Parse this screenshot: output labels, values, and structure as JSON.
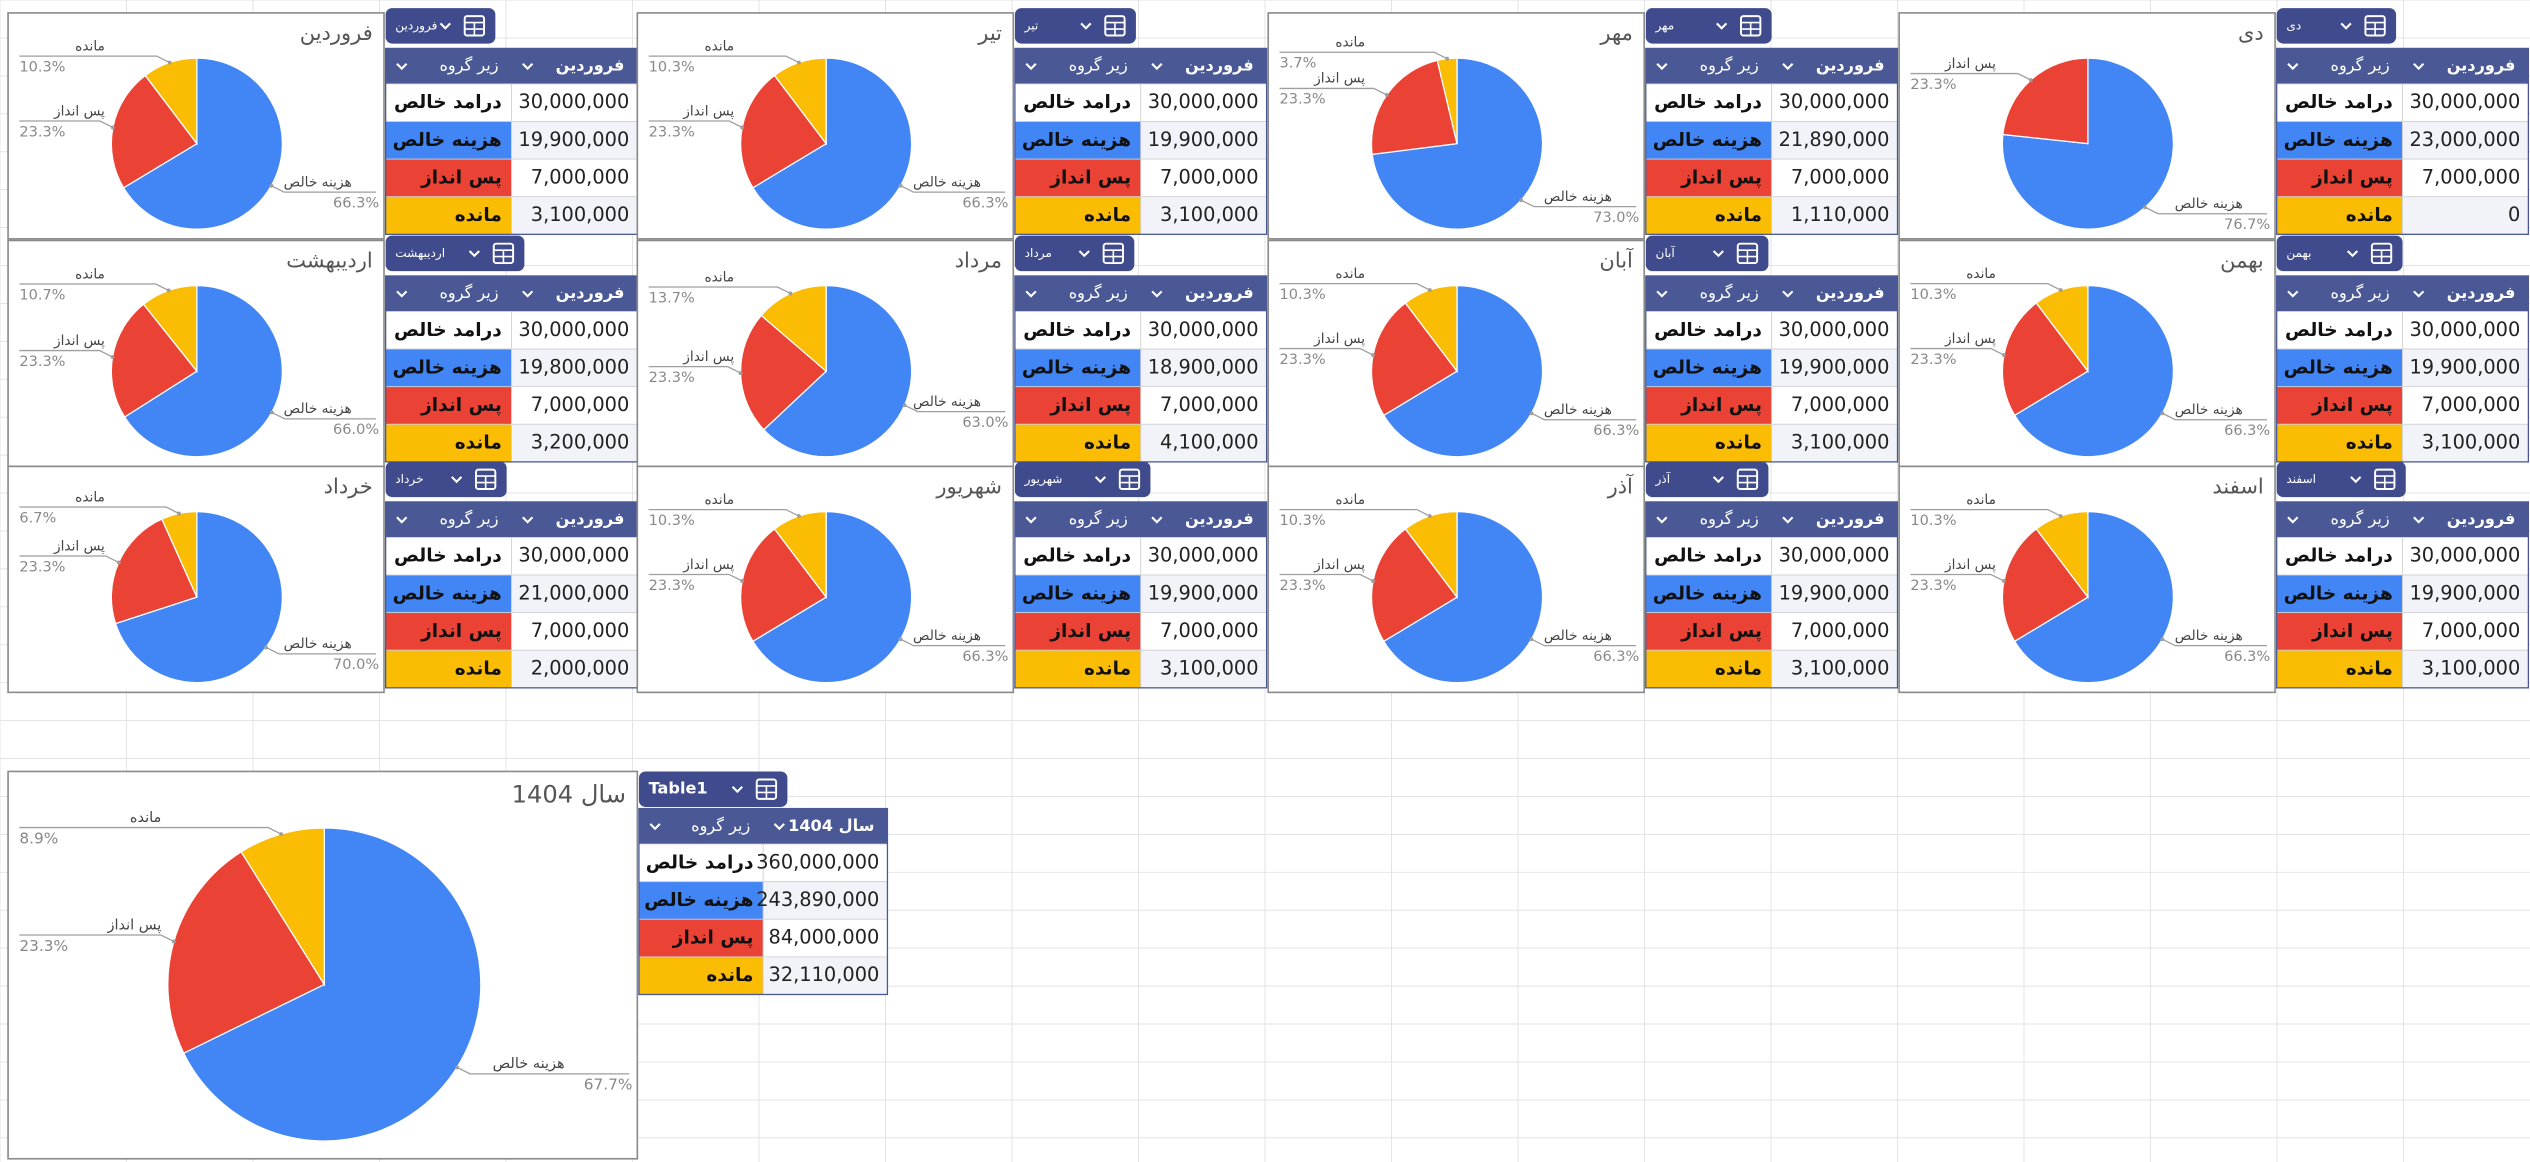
{
  "chart_data": [
    {
      "type": "pie",
      "title": "فروردین",
      "categories": [
        "هزینه خالص",
        "پس انداز",
        "مانده"
      ],
      "values": [
        66.3,
        23.3,
        10.3
      ],
      "value_labels": [
        "66.3%",
        "23.3%",
        "10.3%"
      ],
      "colors": [
        "#4285f4",
        "#ea4335",
        "#fbbc04"
      ]
    },
    {
      "type": "pie",
      "title": "تیر",
      "categories": [
        "هزینه خالص",
        "پس انداز",
        "مانده"
      ],
      "values": [
        66.3,
        23.3,
        10.3
      ],
      "value_labels": [
        "66.3%",
        "23.3%",
        "10.3%"
      ],
      "colors": [
        "#4285f4",
        "#ea4335",
        "#fbbc04"
      ]
    },
    {
      "type": "pie",
      "title": "مهر",
      "categories": [
        "هزینه خالص",
        "پس انداز",
        "مانده"
      ],
      "values": [
        73,
        23.3,
        3.7
      ],
      "value_labels": [
        "73.0%",
        "23.3%",
        "3.7%"
      ],
      "colors": [
        "#4285f4",
        "#ea4335",
        "#fbbc04"
      ]
    },
    {
      "type": "pie",
      "title": "دی",
      "categories": [
        "هزینه خالص",
        "پس انداز"
      ],
      "values": [
        76.7,
        23.3
      ],
      "value_labels": [
        "76.7%",
        "23.3%"
      ],
      "colors": [
        "#4285f4",
        "#ea4335"
      ]
    },
    {
      "type": "pie",
      "title": "اردیبهشت",
      "categories": [
        "هزینه خالص",
        "پس انداز",
        "مانده"
      ],
      "values": [
        66,
        23.3,
        10.7
      ],
      "value_labels": [
        "66.0%",
        "23.3%",
        "10.7%"
      ],
      "colors": [
        "#4285f4",
        "#ea4335",
        "#fbbc04"
      ]
    },
    {
      "type": "pie",
      "title": "مرداد",
      "categories": [
        "هزینه خالص",
        "پس انداز",
        "مانده"
      ],
      "values": [
        63,
        23.3,
        13.7
      ],
      "value_labels": [
        "63.0%",
        "23.3%",
        "13.7%"
      ],
      "colors": [
        "#4285f4",
        "#ea4335",
        "#fbbc04"
      ]
    },
    {
      "type": "pie",
      "title": "آبان",
      "categories": [
        "هزینه خالص",
        "پس انداز",
        "مانده"
      ],
      "values": [
        66.3,
        23.3,
        10.3
      ],
      "value_labels": [
        "66.3%",
        "23.3%",
        "10.3%"
      ],
      "colors": [
        "#4285f4",
        "#ea4335",
        "#fbbc04"
      ]
    },
    {
      "type": "pie",
      "title": "بهمن",
      "categories": [
        "هزینه خالص",
        "پس انداز",
        "مانده"
      ],
      "values": [
        66.3,
        23.3,
        10.3
      ],
      "value_labels": [
        "66.3%",
        "23.3%",
        "10.3%"
      ],
      "colors": [
        "#4285f4",
        "#ea4335",
        "#fbbc04"
      ]
    },
    {
      "type": "pie",
      "title": "خرداد",
      "categories": [
        "هزینه خالص",
        "پس انداز",
        "مانده"
      ],
      "values": [
        70,
        23.3,
        6.7
      ],
      "value_labels": [
        "70.0%",
        "23.3%",
        "6.7%"
      ],
      "colors": [
        "#4285f4",
        "#ea4335",
        "#fbbc04"
      ]
    },
    {
      "type": "pie",
      "title": "شهریور",
      "categories": [
        "هزینه خالص",
        "پس انداز",
        "مانده"
      ],
      "values": [
        66.3,
        23.3,
        10.3
      ],
      "value_labels": [
        "66.3%",
        "23.3%",
        "10.3%"
      ],
      "colors": [
        "#4285f4",
        "#ea4335",
        "#fbbc04"
      ]
    },
    {
      "type": "pie",
      "title": "آذر",
      "categories": [
        "هزینه خالص",
        "پس انداز",
        "مانده"
      ],
      "values": [
        66.3,
        23.3,
        10.3
      ],
      "value_labels": [
        "66.3%",
        "23.3%",
        "10.3%"
      ],
      "colors": [
        "#4285f4",
        "#ea4335",
        "#fbbc04"
      ]
    },
    {
      "type": "pie",
      "title": "اسفند",
      "categories": [
        "هزینه خالص",
        "پس انداز",
        "مانده"
      ],
      "values": [
        66.3,
        23.3,
        10.3
      ],
      "value_labels": [
        "66.3%",
        "23.3%",
        "10.3%"
      ],
      "colors": [
        "#4285f4",
        "#ea4335",
        "#fbbc04"
      ]
    },
    {
      "type": "pie",
      "title": "سال 1404",
      "categories": [
        "هزینه خالص",
        "پس انداز",
        "مانده"
      ],
      "values": [
        67.7,
        23.3,
        8.9
      ],
      "value_labels": [
        "67.7%",
        "23.3%",
        "8.9%"
      ],
      "colors": [
        "#4285f4",
        "#ea4335",
        "#fbbc04"
      ]
    }
  ],
  "tables": [
    {
      "tab": "فروردین",
      "headers": [
        "زیر گروه",
        "فروردین"
      ],
      "rows": [
        [
          "درامد خالص",
          "30,000,000"
        ],
        [
          "هزینه خالص",
          "19,900,000"
        ],
        [
          "پس انداز",
          "7,000,000"
        ],
        [
          "مانده",
          "3,100,000"
        ]
      ]
    },
    {
      "tab": "تیر",
      "headers": [
        "زیر گروه",
        "فروردین"
      ],
      "rows": [
        [
          "درامد خالص",
          "30,000,000"
        ],
        [
          "هزینه خالص",
          "19,900,000"
        ],
        [
          "پس انداز",
          "7,000,000"
        ],
        [
          "مانده",
          "3,100,000"
        ]
      ]
    },
    {
      "tab": "مهر",
      "headers": [
        "زیر گروه",
        "فروردین"
      ],
      "rows": [
        [
          "درامد خالص",
          "30,000,000"
        ],
        [
          "هزینه خالص",
          "21,890,000"
        ],
        [
          "پس انداز",
          "7,000,000"
        ],
        [
          "مانده",
          "1,110,000"
        ]
      ]
    },
    {
      "tab": "دی",
      "headers": [
        "زیر گروه",
        "فروردین"
      ],
      "rows": [
        [
          "درامد خالص",
          "30,000,000"
        ],
        [
          "هزینه خالص",
          "23,000,000"
        ],
        [
          "پس انداز",
          "7,000,000"
        ],
        [
          "مانده",
          "0"
        ]
      ]
    },
    {
      "tab": "اردیبهشت",
      "headers": [
        "زیر گروه",
        "فروردین"
      ],
      "rows": [
        [
          "درامد خالص",
          "30,000,000"
        ],
        [
          "هزینه خالص",
          "19,800,000"
        ],
        [
          "پس انداز",
          "7,000,000"
        ],
        [
          "مانده",
          "3,200,000"
        ]
      ]
    },
    {
      "tab": "مرداد",
      "headers": [
        "زیر گروه",
        "فروردین"
      ],
      "rows": [
        [
          "درامد خالص",
          "30,000,000"
        ],
        [
          "هزینه خالص",
          "18,900,000"
        ],
        [
          "پس انداز",
          "7,000,000"
        ],
        [
          "مانده",
          "4,100,000"
        ]
      ]
    },
    {
      "tab": "آبان",
      "headers": [
        "زیر گروه",
        "فروردین"
      ],
      "rows": [
        [
          "درامد خالص",
          "30,000,000"
        ],
        [
          "هزینه خالص",
          "19,900,000"
        ],
        [
          "پس انداز",
          "7,000,000"
        ],
        [
          "مانده",
          "3,100,000"
        ]
      ]
    },
    {
      "tab": "بهمن",
      "headers": [
        "زیر گروه",
        "فروردین"
      ],
      "rows": [
        [
          "درامد خالص",
          "30,000,000"
        ],
        [
          "هزینه خالص",
          "19,900,000"
        ],
        [
          "پس انداز",
          "7,000,000"
        ],
        [
          "مانده",
          "3,100,000"
        ]
      ]
    },
    {
      "tab": "خرداد",
      "headers": [
        "زیر گروه",
        "فروردین"
      ],
      "rows": [
        [
          "درامد خالص",
          "30,000,000"
        ],
        [
          "هزینه خالص",
          "21,000,000"
        ],
        [
          "پس انداز",
          "7,000,000"
        ],
        [
          "مانده",
          "2,000,000"
        ]
      ]
    },
    {
      "tab": "شهریور",
      "headers": [
        "زیر گروه",
        "فروردین"
      ],
      "rows": [
        [
          "درامد خالص",
          "30,000,000"
        ],
        [
          "هزینه خالص",
          "19,900,000"
        ],
        [
          "پس انداز",
          "7,000,000"
        ],
        [
          "مانده",
          "3,100,000"
        ]
      ]
    },
    {
      "tab": "آذر",
      "headers": [
        "زیر گروه",
        "فروردین"
      ],
      "rows": [
        [
          "درامد خالص",
          "30,000,000"
        ],
        [
          "هزینه خالص",
          "19,900,000"
        ],
        [
          "پس انداز",
          "7,000,000"
        ],
        [
          "مانده",
          "3,100,000"
        ]
      ]
    },
    {
      "tab": "اسفند",
      "headers": [
        "زیر گروه",
        "فروردین"
      ],
      "rows": [
        [
          "درامد خالص",
          "30,000,000"
        ],
        [
          "هزینه خالص",
          "19,900,000"
        ],
        [
          "پس انداز",
          "7,000,000"
        ],
        [
          "مانده",
          "3,100,000"
        ]
      ]
    },
    {
      "tab": "Table1",
      "headers": [
        "زیر گروه",
        "سال 1404"
      ],
      "rows": [
        [
          "درامد خالص",
          "360,000,000"
        ],
        [
          "هزینه خالص",
          "243,890,000"
        ],
        [
          "پس انداز",
          "84,000,000"
        ],
        [
          "مانده",
          "32,110,000"
        ]
      ]
    }
  ]
}
